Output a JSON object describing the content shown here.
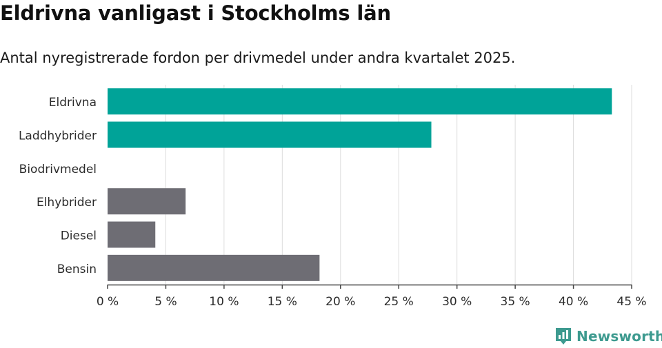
{
  "header": {
    "title": "Eldrivna vanligast i Stockholms län",
    "subtitle": "Antal nyregistrerade fordon per drivmedel under andra kvartalet 2025."
  },
  "chart_data": {
    "type": "bar",
    "orientation": "horizontal",
    "categories": [
      "Eldrivna",
      "Laddhybrider",
      "Biodrivmedel",
      "Elhybrider",
      "Diesel",
      "Bensin"
    ],
    "values": [
      43.3,
      27.8,
      0,
      6.7,
      4.1,
      18.2
    ],
    "colors": [
      "#00a398",
      "#00a398",
      "#00a398",
      "#6e6d74",
      "#6e6d74",
      "#6e6d74"
    ],
    "xlim": [
      0,
      45
    ],
    "xticks": [
      0,
      5,
      10,
      15,
      20,
      25,
      30,
      35,
      40,
      45
    ],
    "tick_labels": [
      "0 %",
      "5 %",
      "10 %",
      "15 %",
      "20 %",
      "25 %",
      "30 %",
      "35 %",
      "40 %",
      "45 %"
    ],
    "grid": true
  },
  "brand": {
    "name": "Newsworthy",
    "color": "#3d9a8f",
    "icon": "bar-chart-logo-icon"
  }
}
